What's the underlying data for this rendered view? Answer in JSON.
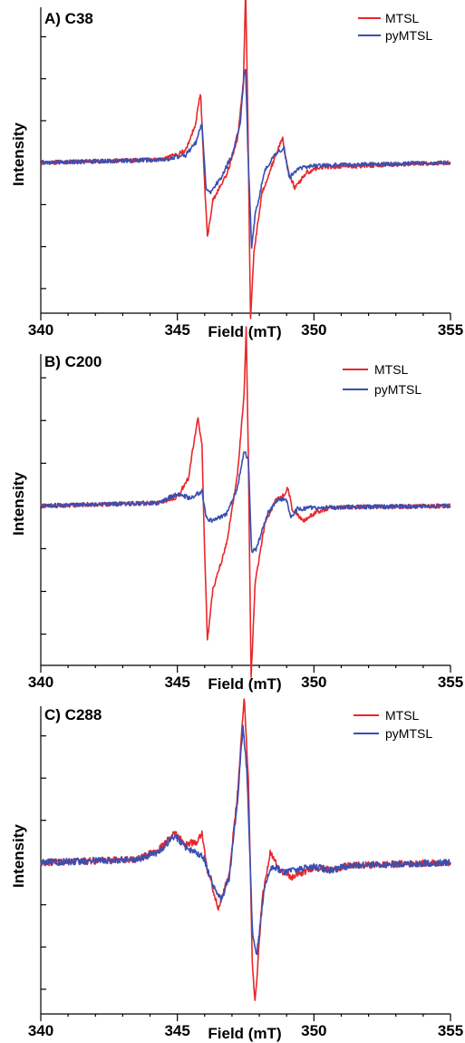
{
  "colors": {
    "mtsl": "#e8282b",
    "pymtsl": "#3a4fb0"
  },
  "chart_data": [
    {
      "type": "line",
      "title": "A) C38",
      "xlabel": "Field (mT)",
      "ylabel": "Intensity",
      "xlim": [
        340,
        355
      ],
      "ylim": [
        -1.1,
        1.3
      ],
      "x_ticks": [
        340,
        345,
        350,
        355
      ],
      "y_tick_labels": "none",
      "legend": "top-right",
      "series": [
        {
          "name": "MTSL",
          "color": "#e8282b",
          "points": [
            [
              340,
              0
            ],
            [
              344.5,
              0.02
            ],
            [
              345.3,
              0.08
            ],
            [
              345.65,
              0.25
            ],
            [
              345.85,
              0.47
            ],
            [
              346.0,
              -0.15
            ],
            [
              346.1,
              -0.5
            ],
            [
              346.3,
              -0.25
            ],
            [
              346.8,
              -0.08
            ],
            [
              347.2,
              0.15
            ],
            [
              347.42,
              0.55
            ],
            [
              347.5,
              1.15
            ],
            [
              347.58,
              0.3
            ],
            [
              347.68,
              -1.05
            ],
            [
              347.8,
              -0.6
            ],
            [
              348.1,
              -0.2
            ],
            [
              348.5,
              0.0
            ],
            [
              348.85,
              0.17
            ],
            [
              349.05,
              -0.05
            ],
            [
              349.3,
              -0.17
            ],
            [
              349.7,
              -0.07
            ],
            [
              350.2,
              -0.03
            ],
            [
              355,
              0
            ]
          ]
        },
        {
          "name": "pyMTSL",
          "color": "#3a4fb0",
          "points": [
            [
              340,
              0
            ],
            [
              344.5,
              0.02
            ],
            [
              345.3,
              0.05
            ],
            [
              345.7,
              0.14
            ],
            [
              345.9,
              0.27
            ],
            [
              346.05,
              -0.18
            ],
            [
              346.2,
              -0.2
            ],
            [
              346.6,
              -0.1
            ],
            [
              347.0,
              0.05
            ],
            [
              347.3,
              0.25
            ],
            [
              347.45,
              0.6
            ],
            [
              347.5,
              0.63
            ],
            [
              347.58,
              0.1
            ],
            [
              347.72,
              -0.57
            ],
            [
              347.85,
              -0.35
            ],
            [
              348.2,
              -0.05
            ],
            [
              348.6,
              0.06
            ],
            [
              348.9,
              0.1
            ],
            [
              349.1,
              -0.1
            ],
            [
              349.4,
              -0.04
            ],
            [
              350,
              -0.02
            ],
            [
              355,
              0
            ]
          ]
        }
      ]
    },
    {
      "type": "line",
      "title": "B) C200",
      "xlabel": "Field (mT)",
      "ylabel": "Intensity",
      "xlim": [
        340,
        355
      ],
      "ylim": [
        -1.1,
        1.3
      ],
      "x_ticks": [
        340,
        345,
        350,
        355
      ],
      "y_tick_labels": "none",
      "legend": "top-right",
      "series": [
        {
          "name": "MTSL",
          "color": "#e8282b",
          "points": [
            [
              340,
              0
            ],
            [
              344.3,
              0.02
            ],
            [
              345.0,
              0.06
            ],
            [
              345.4,
              0.18
            ],
            [
              345.75,
              0.58
            ],
            [
              345.9,
              0.4
            ],
            [
              346.0,
              -0.3
            ],
            [
              346.1,
              -0.88
            ],
            [
              346.3,
              -0.55
            ],
            [
              346.8,
              -0.25
            ],
            [
              347.2,
              0.2
            ],
            [
              347.45,
              0.75
            ],
            [
              347.52,
              1.18
            ],
            [
              347.6,
              0.3
            ],
            [
              347.7,
              -1.12
            ],
            [
              347.85,
              -0.5
            ],
            [
              348.2,
              -0.12
            ],
            [
              348.6,
              0.04
            ],
            [
              348.9,
              0.07
            ],
            [
              349.05,
              0.12
            ],
            [
              349.2,
              -0.02
            ],
            [
              349.6,
              -0.1
            ],
            [
              350.1,
              -0.04
            ],
            [
              350.6,
              -0.01
            ],
            [
              355,
              0
            ]
          ]
        },
        {
          "name": "pyMTSL",
          "color": "#3a4fb0",
          "points": [
            [
              340,
              0
            ],
            [
              344.3,
              0.02
            ],
            [
              345.0,
              0.08
            ],
            [
              345.5,
              0.05
            ],
            [
              345.9,
              0.1
            ],
            [
              346.05,
              -0.08
            ],
            [
              346.3,
              -0.1
            ],
            [
              346.8,
              -0.05
            ],
            [
              347.2,
              0.12
            ],
            [
              347.45,
              0.36
            ],
            [
              347.6,
              0.3
            ],
            [
              347.72,
              -0.3
            ],
            [
              347.9,
              -0.28
            ],
            [
              348.3,
              -0.05
            ],
            [
              348.7,
              0.05
            ],
            [
              349.0,
              0.04
            ],
            [
              349.15,
              -0.07
            ],
            [
              349.4,
              -0.02
            ],
            [
              350,
              -0.01
            ],
            [
              355,
              0
            ]
          ]
        }
      ]
    },
    {
      "type": "line",
      "title": "C) C288",
      "xlabel": "Field (mT)",
      "ylabel": "Intensity",
      "xlim": [
        340,
        355
      ],
      "ylim": [
        -1.1,
        1.3
      ],
      "x_ticks": [
        340,
        345,
        350,
        355
      ],
      "y_tick_labels": "none",
      "legend": "top-right",
      "series": [
        {
          "name": "MTSL",
          "color": "#e8282b",
          "points": [
            [
              340,
              0
            ],
            [
              343.5,
              0.02
            ],
            [
              344.3,
              0.08
            ],
            [
              344.9,
              0.2
            ],
            [
              345.3,
              0.12
            ],
            [
              345.7,
              0.14
            ],
            [
              345.9,
              0.2
            ],
            [
              346.1,
              -0.05
            ],
            [
              346.5,
              -0.3
            ],
            [
              346.9,
              -0.08
            ],
            [
              347.2,
              0.45
            ],
            [
              347.45,
              1.1
            ],
            [
              347.6,
              0.55
            ],
            [
              347.75,
              -0.7
            ],
            [
              347.85,
              -0.92
            ],
            [
              348.1,
              -0.25
            ],
            [
              348.4,
              0.06
            ],
            [
              348.8,
              -0.05
            ],
            [
              349.2,
              -0.1
            ],
            [
              350,
              -0.03
            ],
            [
              350.6,
              -0.05
            ],
            [
              351.3,
              -0.02
            ],
            [
              355,
              0
            ]
          ]
        },
        {
          "name": "pyMTSL",
          "color": "#3a4fb0",
          "points": [
            [
              340,
              0
            ],
            [
              343.5,
              0.02
            ],
            [
              344.3,
              0.07
            ],
            [
              344.9,
              0.18
            ],
            [
              345.3,
              0.1
            ],
            [
              345.7,
              0.07
            ],
            [
              346.0,
              0.02
            ],
            [
              346.3,
              -0.15
            ],
            [
              346.6,
              -0.25
            ],
            [
              346.9,
              -0.1
            ],
            [
              347.2,
              0.4
            ],
            [
              347.4,
              0.9
            ],
            [
              347.55,
              0.6
            ],
            [
              347.75,
              -0.45
            ],
            [
              347.9,
              -0.62
            ],
            [
              348.2,
              -0.15
            ],
            [
              348.5,
              -0.02
            ],
            [
              348.9,
              -0.07
            ],
            [
              349.3,
              -0.05
            ],
            [
              350,
              -0.03
            ],
            [
              350.6,
              -0.05
            ],
            [
              351.3,
              -0.02
            ],
            [
              355,
              0
            ]
          ]
        }
      ]
    }
  ]
}
